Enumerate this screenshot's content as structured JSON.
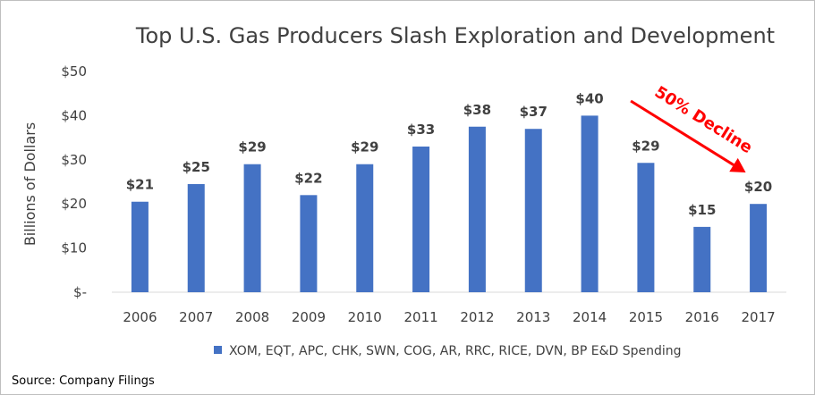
{
  "chart_data": {
    "type": "bar",
    "title": "Top U.S. Gas Producers Slash Exploration and Development",
    "ylabel": "Billions of Dollars",
    "xlabel": "",
    "categories": [
      "2006",
      "2007",
      "2008",
      "2009",
      "2010",
      "2011",
      "2012",
      "2013",
      "2014",
      "2015",
      "2016",
      "2017"
    ],
    "series": [
      {
        "name": "XOM, EQT, APC, CHK, SWN, COG, AR, RRC, RICE, DVN, BP E&D Spending",
        "values": [
          20.5,
          24.5,
          29,
          22,
          29,
          33,
          37.5,
          37,
          40,
          29.3,
          14.8,
          20
        ],
        "labels": [
          "$21",
          "$25",
          "$29",
          "$22",
          "$29",
          "$33",
          "$38",
          "$37",
          "$40",
          "$29",
          "$15",
          "$20"
        ]
      }
    ],
    "ylim": [
      0,
      50
    ],
    "yticks": [
      0,
      10,
      20,
      30,
      40,
      50
    ],
    "ytick_labels": [
      "$-",
      "$10",
      "$20",
      "$30",
      "$40",
      "$50"
    ],
    "grid": false,
    "legend_position": "bottom",
    "bar_color": "#4472c4",
    "annotation": {
      "text": "50% Decline",
      "color": "#ff0000",
      "from_category": "2014",
      "to_category": "2017"
    },
    "source": "Source: Company Filings"
  }
}
